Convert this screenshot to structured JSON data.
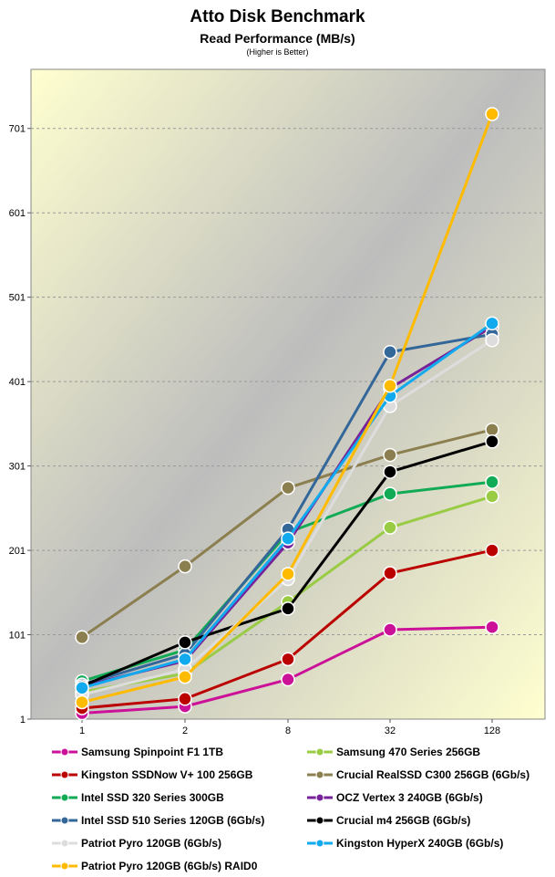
{
  "header": {
    "title": "Atto Disk Benchmark",
    "subtitle": "Read Performance (MB/s)",
    "note": "(Higher is Better)"
  },
  "chart_data": {
    "type": "line",
    "title": "Atto Disk Benchmark",
    "subtitle": "Read Performance (MB/s)",
    "x": [
      "1",
      "2",
      "8",
      "32",
      "128"
    ],
    "y_ticks": [
      1,
      101,
      201,
      301,
      401,
      501,
      601,
      701
    ],
    "ylim": [
      1,
      771
    ],
    "grid": true,
    "legend_position": "bottom",
    "series": [
      {
        "name": "Samsung Spinpoint F1 1TB",
        "color": "#cc1199",
        "values": [
          8,
          16,
          48,
          107,
          110
        ]
      },
      {
        "name": "Samsung 470 Series 256GB",
        "color": "#99cc44",
        "values": [
          33,
          55,
          140,
          228,
          265
        ]
      },
      {
        "name": "Kingston SSDNow V+ 100 256GB",
        "color": "#bb0000",
        "values": [
          14,
          25,
          72,
          174,
          201
        ]
      },
      {
        "name": "Crucial RealSSD C300 256GB (6Gb/s)",
        "color": "#8c7f4f",
        "values": [
          98,
          182,
          275,
          314,
          344
        ]
      },
      {
        "name": "Intel SSD 320 Series 300GB",
        "color": "#11aa55",
        "values": [
          46,
          83,
          222,
          268,
          282
        ]
      },
      {
        "name": "OCZ Vertex 3 240GB (6Gb/s)",
        "color": "#772299",
        "values": [
          40,
          70,
          210,
          393,
          466
        ]
      },
      {
        "name": "Intel SSD 510 Series 120GB (6Gb/s)",
        "color": "#336699",
        "values": [
          42,
          78,
          226,
          436,
          457
        ]
      },
      {
        "name": "Crucial m4 256GB (6Gb/s)",
        "color": "#000000",
        "values": [
          40,
          92,
          132,
          294,
          330
        ]
      },
      {
        "name": "Patriot Pyro 120GB (6Gb/s)",
        "color": "#dddddd",
        "values": [
          30,
          60,
          167,
          372,
          450
        ]
      },
      {
        "name": "Kingston HyperX 240GB (6Gb/s)",
        "color": "#11aaee",
        "values": [
          38,
          72,
          215,
          384,
          470
        ]
      },
      {
        "name": "Patriot Pyro 120GB (6Gb/s) RAID0",
        "color": "#ffbb00",
        "values": [
          21,
          51,
          173,
          396,
          718
        ]
      }
    ]
  }
}
